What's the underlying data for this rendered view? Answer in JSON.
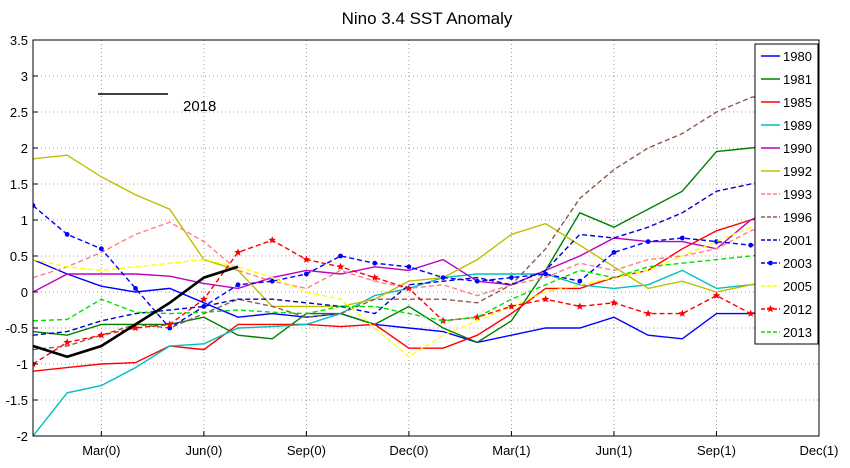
{
  "chart_data": {
    "type": "line",
    "title": "Nino 3.4 SST Anomaly",
    "xlabel": "",
    "ylabel": "",
    "ylim": [
      -2,
      3.5
    ],
    "xlim": [
      0,
      23
    ],
    "grid": true,
    "legend_position": "right",
    "x_ticks": [
      {
        "x": 2,
        "label": "Mar(0)"
      },
      {
        "x": 5,
        "label": "Jun(0)"
      },
      {
        "x": 8,
        "label": "Sep(0)"
      },
      {
        "x": 11,
        "label": "Dec(0)"
      },
      {
        "x": 14,
        "label": "Mar(1)"
      },
      {
        "x": 17,
        "label": "Jun(1)"
      },
      {
        "x": 20,
        "label": "Sep(1)"
      },
      {
        "x": 23,
        "label": "Dec(1)"
      }
    ],
    "y_ticks": [
      -2,
      -1.5,
      -1,
      -0.5,
      0,
      0.5,
      1,
      1.5,
      2,
      2.5,
      3,
      3.5
    ],
    "annotation": {
      "label": "2018"
    },
    "highlight_series": {
      "name": "2018",
      "color": "#000000",
      "x": [
        0,
        1,
        2,
        3,
        4,
        5,
        6
      ],
      "values": [
        -0.75,
        -0.9,
        -0.75,
        -0.45,
        -0.15,
        0.2,
        0.35
      ]
    },
    "series": [
      {
        "name": "1980",
        "color": "#0000ff",
        "dash": "solid",
        "marker": "none",
        "values": [
          0.45,
          0.25,
          0.08,
          0.0,
          0.05,
          -0.15,
          -0.35,
          -0.3,
          -0.35,
          -0.3,
          -0.45,
          -0.5,
          -0.55,
          -0.7,
          -0.6,
          -0.5,
          -0.5,
          -0.35,
          -0.6,
          -0.65,
          -0.3,
          -0.3,
          -0.28,
          -0.25
        ]
      },
      {
        "name": "1981",
        "color": "#008000",
        "dash": "solid",
        "marker": "none",
        "values": [
          -0.55,
          -0.6,
          -0.45,
          -0.45,
          -0.45,
          -0.35,
          -0.6,
          -0.65,
          -0.3,
          -0.3,
          -0.45,
          -0.2,
          -0.5,
          -0.7,
          -0.4,
          0.3,
          1.1,
          0.9,
          1.15,
          1.4,
          1.95,
          2.0,
          2.05,
          2.1
        ]
      },
      {
        "name": "1985",
        "color": "#ff0000",
        "dash": "solid",
        "marker": "none",
        "values": [
          -1.1,
          -1.05,
          -1.0,
          -0.98,
          -0.75,
          -0.8,
          -0.45,
          -0.45,
          -0.45,
          -0.48,
          -0.45,
          -0.78,
          -0.78,
          -0.6,
          -0.3,
          0.05,
          0.05,
          0.2,
          0.3,
          0.6,
          0.85,
          1.0,
          1.1,
          1.2
        ]
      },
      {
        "name": "1989",
        "color": "#00bfbf",
        "dash": "solid",
        "marker": "none",
        "values": [
          -2.0,
          -1.4,
          -1.3,
          -1.05,
          -0.75,
          -0.72,
          -0.5,
          -0.48,
          -0.45,
          -0.3,
          -0.05,
          0.05,
          0.2,
          0.25,
          0.25,
          0.25,
          0.1,
          0.05,
          0.1,
          0.3,
          0.05,
          0.1,
          0.15,
          0.2
        ]
      },
      {
        "name": "1990",
        "color": "#bf00bf",
        "dash": "solid",
        "marker": "none",
        "values": [
          0.0,
          0.25,
          0.25,
          0.25,
          0.22,
          0.12,
          0.05,
          0.2,
          0.3,
          0.25,
          0.35,
          0.3,
          0.45,
          0.15,
          0.1,
          0.3,
          0.5,
          0.75,
          0.7,
          0.7,
          0.6,
          1.0,
          1.2,
          1.3
        ]
      },
      {
        "name": "1992",
        "color": "#bfbf00",
        "dash": "solid",
        "marker": "none",
        "values": [
          1.85,
          1.9,
          1.6,
          1.35,
          1.15,
          0.45,
          0.3,
          -0.2,
          -0.2,
          -0.2,
          -0.1,
          0.15,
          0.2,
          0.45,
          0.8,
          0.95,
          0.65,
          0.35,
          0.05,
          0.15,
          0.0,
          0.1,
          0.2,
          0.3
        ]
      },
      {
        "name": "1993",
        "color": "#ff8080",
        "dash": "dashed",
        "marker": "none",
        "values": [
          0.2,
          0.35,
          0.55,
          0.8,
          0.97,
          0.7,
          0.3,
          0.15,
          0.05,
          0.3,
          0.15,
          0.05,
          0.1,
          -0.05,
          0.1,
          0.2,
          0.4,
          0.3,
          0.45,
          0.5,
          0.6,
          0.85,
          1.0,
          1.1
        ]
      },
      {
        "name": "1996",
        "color": "#8b5a4a",
        "dash": "dashed",
        "marker": "none",
        "values": [
          -0.8,
          -0.75,
          -0.6,
          -0.45,
          -0.5,
          -0.3,
          -0.1,
          -0.2,
          -0.35,
          -0.3,
          -0.1,
          -0.1,
          -0.1,
          -0.15,
          0.1,
          0.6,
          1.3,
          1.7,
          2.0,
          2.2,
          2.5,
          2.7,
          2.8,
          2.9
        ]
      },
      {
        "name": "2001",
        "color": "#0000cd",
        "dash": "dashed",
        "marker": "none",
        "values": [
          -0.6,
          -0.55,
          -0.4,
          -0.3,
          -0.25,
          -0.2,
          -0.1,
          -0.1,
          -0.15,
          -0.2,
          -0.3,
          0.1,
          0.15,
          0.2,
          0.1,
          0.3,
          0.8,
          0.75,
          0.9,
          1.1,
          1.4,
          1.5,
          1.6,
          1.7
        ]
      },
      {
        "name": "2003",
        "color": "#0000ff",
        "dash": "dashed",
        "marker": "dot",
        "values": [
          1.2,
          0.8,
          0.6,
          0.05,
          -0.5,
          -0.2,
          0.1,
          0.15,
          0.25,
          0.5,
          0.4,
          0.35,
          0.2,
          0.15,
          0.2,
          0.25,
          0.15,
          0.55,
          0.7,
          0.75,
          0.7,
          0.65,
          0.7,
          0.75
        ]
      },
      {
        "name": "2005",
        "color": "#ffff00",
        "dash": "dashed",
        "marker": "none",
        "values": [
          0.45,
          0.35,
          0.3,
          0.35,
          0.4,
          0.45,
          0.35,
          0.2,
          0.0,
          -0.1,
          -0.5,
          -0.9,
          -0.6,
          -0.4,
          -0.2,
          0.0,
          0.1,
          0.2,
          0.3,
          0.5,
          0.7,
          0.9,
          1.0,
          1.1
        ]
      },
      {
        "name": "2012",
        "color": "#ff0000",
        "dash": "dashed",
        "marker": "star",
        "values": [
          -1.0,
          -0.7,
          -0.6,
          -0.5,
          -0.45,
          -0.1,
          0.55,
          0.72,
          0.45,
          0.35,
          0.2,
          0.05,
          -0.4,
          -0.35,
          -0.2,
          -0.1,
          -0.2,
          -0.15,
          -0.3,
          -0.3,
          -0.05,
          -0.3,
          -0.2,
          -0.1
        ]
      },
      {
        "name": "2013",
        "color": "#00e000",
        "dash": "dashed",
        "marker": "none",
        "values": [
          -0.4,
          -0.38,
          -0.1,
          -0.28,
          -0.3,
          -0.28,
          -0.25,
          -0.28,
          -0.3,
          -0.2,
          -0.2,
          -0.3,
          -0.4,
          -0.35,
          -0.1,
          0.1,
          0.3,
          0.2,
          0.35,
          0.4,
          0.45,
          0.5,
          0.55,
          0.6
        ]
      }
    ]
  }
}
